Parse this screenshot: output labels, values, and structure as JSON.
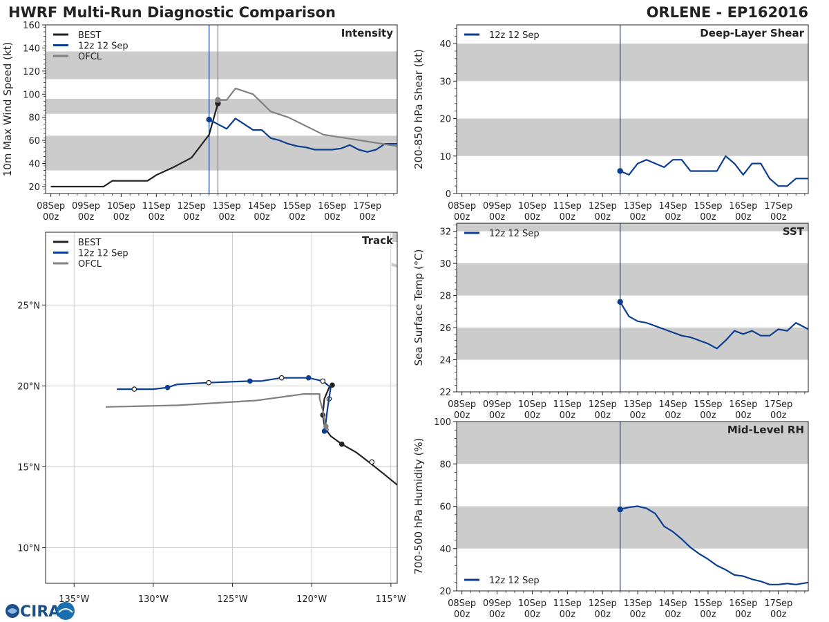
{
  "header": {
    "title_left": "HWRF Multi-Run Diagnostic Comparison",
    "title_right": "ORLENE - EP162016"
  },
  "logo": {
    "text": "CIRA"
  },
  "colors": {
    "best": "#222222",
    "run": "#0b3d91",
    "ofcl": "#808080",
    "band": "#cccccc"
  },
  "time_axis": {
    "ticks": [
      0,
      1,
      2,
      3,
      4,
      5,
      6,
      7,
      8,
      9
    ],
    "labels": [
      [
        "08Sep",
        "00z"
      ],
      [
        "09Sep",
        "00z"
      ],
      [
        "10Sep",
        "00z"
      ],
      [
        "11Sep",
        "00z"
      ],
      [
        "12Sep",
        "00z"
      ],
      [
        "13Sep",
        "00z"
      ],
      [
        "14Sep",
        "00z"
      ],
      [
        "15Sep",
        "00z"
      ],
      [
        "16Sep",
        "00z"
      ],
      [
        "17Sep",
        "00z"
      ]
    ],
    "xlim": [
      -0.15,
      9.85
    ]
  },
  "chart_data": [
    {
      "id": "intensity",
      "type": "line",
      "title": "Intensity",
      "ylabel": "10m Max Wind Speed (kt)",
      "ylim": [
        14,
        160
      ],
      "yticks": [
        20,
        40,
        60,
        80,
        100,
        120,
        140,
        160
      ],
      "bands": [
        [
          34,
          64
        ],
        [
          83,
          96
        ],
        [
          113,
          137
        ]
      ],
      "vlines": [
        {
          "x": 4.5,
          "series": "run"
        },
        {
          "x": 4.75,
          "series": "ofcl"
        }
      ],
      "legend": [
        "BEST",
        "12z 12 Sep",
        "OFCL"
      ],
      "series": [
        {
          "name": "BEST",
          "color": "#222222",
          "x": [
            0,
            0.5,
            1,
            1.5,
            1.75,
            2,
            2.5,
            2.75,
            3,
            3.5,
            4,
            4.25,
            4.5,
            4.75
          ],
          "y": [
            20,
            20,
            20,
            20,
            25,
            25,
            25,
            25,
            30,
            37,
            45,
            55,
            65,
            92
          ],
          "markers": [
            {
              "x": 4.75,
              "y": 92,
              "filled": true
            }
          ]
        },
        {
          "name": "12z 12 Sep",
          "color": "#0b3d91",
          "x": [
            4.5,
            4.75,
            5,
            5.25,
            5.5,
            5.75,
            6,
            6.25,
            6.5,
            6.75,
            7,
            7.25,
            7.5,
            7.75,
            8,
            8.25,
            8.5,
            8.75,
            9,
            9.25,
            9.5,
            9.85
          ],
          "y": [
            78,
            74,
            70,
            79,
            74,
            69,
            69,
            62,
            60,
            57,
            55,
            54,
            52,
            52,
            52,
            53,
            56,
            52,
            50,
            52,
            57,
            57
          ],
          "markers": [
            {
              "x": 4.5,
              "y": 78,
              "filled": true
            }
          ]
        },
        {
          "name": "OFCL",
          "color": "#808080",
          "x": [
            4.75,
            5,
            5.25,
            5.75,
            6.25,
            6.75,
            7.75,
            9.85
          ],
          "y": [
            95,
            95,
            105,
            100,
            85,
            80,
            65,
            55
          ],
          "markers": [
            {
              "x": 4.75,
              "y": 95,
              "filled": true
            }
          ]
        }
      ]
    },
    {
      "id": "shear",
      "type": "line",
      "title": "Deep-Layer Shear",
      "ylabel": "200-850 hPa Shear (kt)",
      "ylim": [
        0,
        45
      ],
      "yticks": [
        0,
        10,
        20,
        30,
        40
      ],
      "bands": [
        [
          10,
          20
        ],
        [
          30,
          40
        ]
      ],
      "vlines": [
        {
          "x": 4.5,
          "series": "run"
        }
      ],
      "legend": [
        "12z 12 Sep"
      ],
      "series": [
        {
          "name": "12z 12 Sep",
          "color": "#0b3d91",
          "x": [
            4.5,
            4.75,
            5,
            5.25,
            5.5,
            5.75,
            6,
            6.25,
            6.5,
            6.75,
            7,
            7.25,
            7.5,
            7.75,
            8,
            8.25,
            8.5,
            8.75,
            9,
            9.25,
            9.5,
            9.85
          ],
          "y": [
            6,
            5,
            8,
            9,
            8,
            7,
            9,
            9,
            6,
            6,
            6,
            6,
            10,
            8,
            5,
            8,
            8,
            4,
            2,
            2,
            4,
            4
          ],
          "markers": [
            {
              "x": 4.5,
              "y": 6,
              "filled": true
            }
          ]
        }
      ]
    },
    {
      "id": "sst",
      "type": "line",
      "title": "SST",
      "ylabel": "Sea Surface Temp (°C)",
      "ylim": [
        22,
        32.5
      ],
      "yticks": [
        22,
        24,
        26,
        28,
        30,
        32
      ],
      "bands": [
        [
          24,
          26
        ],
        [
          28,
          30
        ],
        [
          32,
          32.5
        ]
      ],
      "vlines": [
        {
          "x": 4.5,
          "series": "run"
        }
      ],
      "legend": [
        "12z 12 Sep"
      ],
      "series": [
        {
          "name": "12z 12 Sep",
          "color": "#0b3d91",
          "x": [
            4.5,
            4.75,
            5,
            5.25,
            5.5,
            5.75,
            6,
            6.25,
            6.5,
            6.75,
            7,
            7.25,
            7.5,
            7.75,
            8,
            8.25,
            8.5,
            8.75,
            9,
            9.25,
            9.5,
            9.85
          ],
          "y": [
            27.6,
            26.7,
            26.4,
            26.3,
            26.1,
            25.9,
            25.7,
            25.5,
            25.4,
            25.2,
            25.0,
            24.7,
            25.2,
            25.8,
            25.6,
            25.8,
            25.5,
            25.5,
            25.9,
            25.8,
            26.3,
            25.9
          ],
          "markers": [
            {
              "x": 4.5,
              "y": 27.6,
              "filled": true
            }
          ]
        }
      ]
    },
    {
      "id": "rh",
      "type": "line",
      "title": "Mid-Level RH",
      "ylabel": "700-500 hPa Humidity (%)",
      "ylim": [
        20,
        100
      ],
      "yticks": [
        20,
        40,
        60,
        80,
        100
      ],
      "bands": [
        [
          40,
          60
        ],
        [
          80,
          100
        ]
      ],
      "vlines": [
        {
          "x": 4.5,
          "series": "run"
        }
      ],
      "legend": [
        "12z 12 Sep"
      ],
      "legend_pos": "bottom-left",
      "series": [
        {
          "name": "12z 12 Sep",
          "color": "#0b3d91",
          "x": [
            4.5,
            4.75,
            5,
            5.25,
            5.5,
            5.75,
            6,
            6.25,
            6.5,
            6.75,
            7,
            7.25,
            7.5,
            7.75,
            8,
            8.25,
            8.5,
            8.75,
            9,
            9.25,
            9.5,
            9.85
          ],
          "y": [
            58.5,
            59.5,
            60,
            59,
            56.5,
            50.5,
            48,
            44.5,
            40.5,
            37.5,
            35,
            32,
            30,
            27.5,
            27,
            25.5,
            24.5,
            23,
            23,
            23.5,
            23,
            24
          ],
          "markers": [
            {
              "x": 4.5,
              "y": 58.5,
              "filled": true
            }
          ]
        }
      ]
    },
    {
      "id": "track",
      "type": "line",
      "title": "Track",
      "xlim": [
        -136.8,
        -114.6
      ],
      "ylim": [
        7.8,
        29.5
      ],
      "xticks": [
        -135,
        -130,
        -125,
        -120,
        -115
      ],
      "xticklabels": [
        "135°W",
        "130°W",
        "125°W",
        "120°W",
        "115°W"
      ],
      "yticks": [
        10,
        15,
        20,
        25
      ],
      "yticklabels": [
        "10°N",
        "15°N",
        "20°N",
        "25°N"
      ],
      "legend": [
        "BEST",
        "12z 12 Sep",
        "OFCL"
      ],
      "series": [
        {
          "name": "BEST",
          "color": "#222222",
          "lon": [
            -114.5,
            -115.5,
            -116.4,
            -117.2,
            -118.1,
            -118.8,
            -119.1,
            -119.2,
            -119.3,
            -119.2,
            -118.9,
            -118.7
          ],
          "lat": [
            13.8,
            14.6,
            15.3,
            15.9,
            16.4,
            16.9,
            17.3,
            17.6,
            18.2,
            19.2,
            19.9,
            20.1
          ],
          "markers": [
            {
              "lon": -116.2,
              "lat": 15.3,
              "filled": false
            },
            {
              "lon": -118.1,
              "lat": 16.4,
              "filled": true
            },
            {
              "lon": -119.1,
              "lat": 17.3,
              "filled": false
            },
            {
              "lon": -119.3,
              "lat": 18.2,
              "filled": true
            },
            {
              "lon": -118.9,
              "lat": 19.2,
              "filled": false
            },
            {
              "lon": -118.7,
              "lat": 20.05,
              "filled": true
            }
          ]
        },
        {
          "name": "12z 12 Sep",
          "color": "#0b3d91",
          "lon": [
            -119.2,
            -119.1,
            -119.0,
            -118.8,
            -119.3,
            -120.2,
            -121.9,
            -123.2,
            -123.9,
            -126.5,
            -128.5,
            -129.1,
            -130.0,
            -131.2,
            -132.3
          ],
          "lat": [
            17.2,
            17.8,
            18.6,
            19.9,
            20.3,
            20.5,
            20.5,
            20.3,
            20.3,
            20.2,
            20.1,
            19.9,
            19.8,
            19.8,
            19.8
          ],
          "markers": [
            {
              "lon": -119.2,
              "lat": 17.2,
              "filled": true
            },
            {
              "lon": -119.3,
              "lat": 20.3,
              "filled": false
            },
            {
              "lon": -120.2,
              "lat": 20.5,
              "filled": true
            },
            {
              "lon": -121.9,
              "lat": 20.5,
              "filled": false
            },
            {
              "lon": -123.9,
              "lat": 20.3,
              "filled": true
            },
            {
              "lon": -126.5,
              "lat": 20.2,
              "filled": false
            },
            {
              "lon": -129.1,
              "lat": 19.9,
              "filled": true
            },
            {
              "lon": -131.2,
              "lat": 19.8,
              "filled": false
            }
          ]
        },
        {
          "name": "OFCL",
          "color": "#808080",
          "lon": [
            -119.1,
            -119.3,
            -119.5,
            -119.5,
            -120.5,
            -123.5,
            -128.5,
            -133.0
          ],
          "lat": [
            17.3,
            18.5,
            19.2,
            19.5,
            19.5,
            19.1,
            18.8,
            18.7
          ],
          "markers": [
            {
              "lon": -119.1,
              "lat": 17.5,
              "filled": true
            }
          ]
        }
      ]
    }
  ]
}
